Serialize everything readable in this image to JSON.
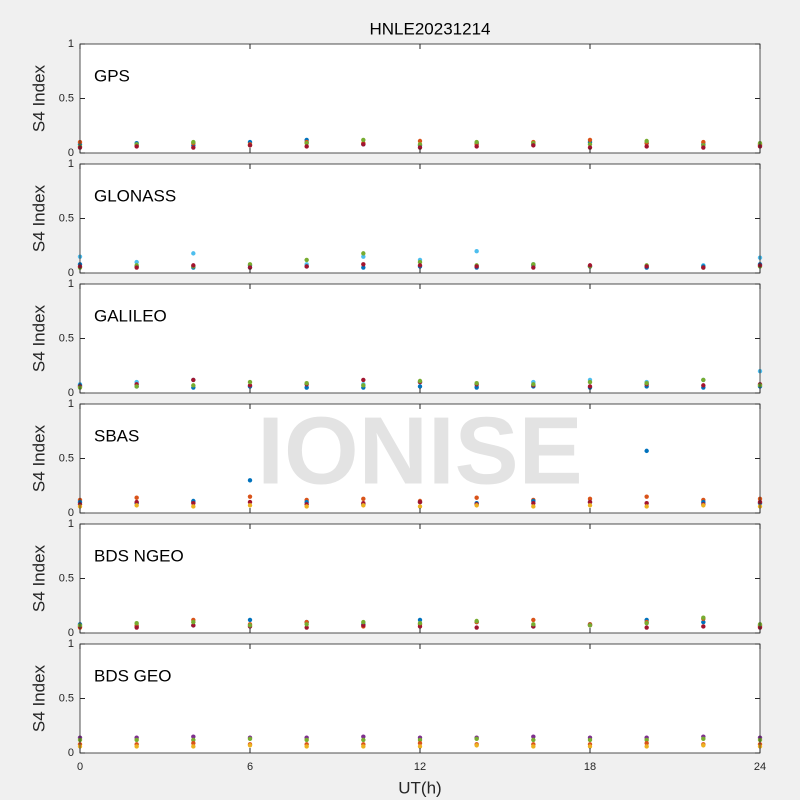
{
  "watermark": "IONISE",
  "chart_data": [
    {
      "type": "scatter",
      "title": "HNLE20231214",
      "label": "GPS",
      "ylabel": "S4 Index",
      "x": [
        0,
        2,
        4,
        6,
        8,
        10,
        12,
        14,
        16,
        18,
        20,
        22,
        24
      ],
      "xlim": [
        0,
        24
      ],
      "xticks": [
        0,
        6,
        12,
        18,
        24
      ],
      "ylim": [
        0,
        1
      ],
      "yticks": [
        0,
        0.5,
        1
      ],
      "series": [
        {
          "color": "#0072BD",
          "values": [
            0.08,
            0.09,
            0.07,
            0.1,
            0.12,
            0.08,
            0.07,
            0.09,
            0.08,
            0.1,
            0.09,
            0.08,
            0.07
          ]
        },
        {
          "color": "#D95319",
          "values": [
            0.1,
            0.07,
            0.09,
            0.08,
            0.1,
            0.09,
            0.11,
            0.08,
            0.1,
            0.12,
            0.09,
            0.1,
            0.08
          ]
        },
        {
          "color": "#77AC30",
          "values": [
            0.06,
            0.08,
            0.1,
            0.07,
            0.09,
            0.12,
            0.08,
            0.1,
            0.09,
            0.08,
            0.11,
            0.07,
            0.09
          ]
        },
        {
          "color": "#A2142F",
          "values": [
            0.05,
            0.06,
            0.05,
            0.07,
            0.06,
            0.08,
            0.05,
            0.06,
            0.07,
            0.05,
            0.06,
            0.05,
            0.06
          ]
        }
      ]
    },
    {
      "type": "scatter",
      "label": "GLONASS",
      "ylabel": "S4 Index",
      "x": [
        0,
        2,
        4,
        6,
        8,
        10,
        12,
        14,
        16,
        18,
        20,
        22,
        24
      ],
      "xlim": [
        0,
        24
      ],
      "xticks": [
        0,
        6,
        12,
        18,
        24
      ],
      "ylim": [
        0,
        1
      ],
      "yticks": [
        0,
        0.5,
        1
      ],
      "series": [
        {
          "color": "#4DBEEE",
          "values": [
            0.15,
            0.1,
            0.18,
            0.05,
            0.08,
            0.15,
            0.12,
            0.2,
            0.08,
            0.06,
            0.05,
            0.07,
            0.14
          ]
        },
        {
          "color": "#0072BD",
          "values": [
            0.08,
            0.06,
            0.05,
            0.07,
            0.06,
            0.05,
            0.06,
            0.05,
            0.07,
            0.06,
            0.05,
            0.06,
            0.08
          ]
        },
        {
          "color": "#77AC30",
          "values": [
            0.05,
            0.07,
            0.06,
            0.08,
            0.12,
            0.18,
            0.1,
            0.07,
            0.08,
            0.06,
            0.07,
            0.05,
            0.06
          ]
        },
        {
          "color": "#A2142F",
          "values": [
            0.06,
            0.05,
            0.07,
            0.05,
            0.06,
            0.08,
            0.07,
            0.06,
            0.05,
            0.07,
            0.06,
            0.05,
            0.07
          ]
        }
      ]
    },
    {
      "type": "scatter",
      "label": "GALILEO",
      "ylabel": "S4 Index",
      "x": [
        0,
        2,
        4,
        6,
        8,
        10,
        12,
        14,
        16,
        18,
        20,
        22,
        24
      ],
      "xlim": [
        0,
        24
      ],
      "xticks": [
        0,
        6,
        12,
        18,
        24
      ],
      "ylim": [
        0,
        1
      ],
      "yticks": [
        0,
        0.5,
        1
      ],
      "series": [
        {
          "color": "#4DBEEE",
          "values": [
            0.08,
            0.1,
            0.12,
            0.06,
            0.05,
            0.08,
            0.1,
            0.06,
            0.1,
            0.12,
            0.1,
            0.12,
            0.2
          ]
        },
        {
          "color": "#0072BD",
          "values": [
            0.07,
            0.06,
            0.05,
            0.06,
            0.05,
            0.05,
            0.06,
            0.05,
            0.06,
            0.05,
            0.06,
            0.05,
            0.06
          ]
        },
        {
          "color": "#A2142F",
          "values": [
            0.06,
            0.08,
            0.12,
            0.07,
            0.08,
            0.12,
            0.1,
            0.08,
            0.07,
            0.06,
            0.08,
            0.07,
            0.08
          ]
        },
        {
          "color": "#77AC30",
          "values": [
            0.05,
            0.06,
            0.07,
            0.1,
            0.09,
            0.07,
            0.11,
            0.09,
            0.08,
            0.1,
            0.09,
            0.12,
            0.07
          ]
        }
      ]
    },
    {
      "type": "scatter",
      "label": "SBAS",
      "ylabel": "S4 Index",
      "x": [
        0,
        2,
        4,
        6,
        8,
        10,
        12,
        14,
        16,
        18,
        20,
        22,
        24
      ],
      "xlim": [
        0,
        24
      ],
      "xticks": [
        0,
        6,
        12,
        18,
        24
      ],
      "ylim": [
        0,
        1
      ],
      "yticks": [
        0,
        0.5,
        1
      ],
      "series": [
        {
          "color": "#D95319",
          "values": [
            0.12,
            0.14,
            0.1,
            0.15,
            0.12,
            0.13,
            0.11,
            0.14,
            0.12,
            0.13,
            0.15,
            0.12,
            0.13
          ]
        },
        {
          "color": "#0072BD",
          "values": [
            0.1,
            0.09,
            0.11,
            0.3,
            0.1,
            0.08,
            0.1,
            0.09,
            0.11,
            0.1,
            0.57,
            0.1,
            0.09
          ]
        },
        {
          "color": "#A2142F",
          "values": [
            0.08,
            0.1,
            0.09,
            0.1,
            0.08,
            0.09,
            0.1,
            0.08,
            0.09,
            0.1,
            0.09,
            0.08,
            0.1
          ]
        },
        {
          "color": "#EDB120",
          "values": [
            0.06,
            0.07,
            0.06,
            0.07,
            0.06,
            0.07,
            0.06,
            0.07,
            0.06,
            0.07,
            0.06,
            0.07,
            0.06
          ]
        }
      ]
    },
    {
      "type": "scatter",
      "label": "BDS NGEO",
      "ylabel": "S4 Index",
      "x": [
        0,
        2,
        4,
        6,
        8,
        10,
        12,
        14,
        16,
        18,
        20,
        22,
        24
      ],
      "xlim": [
        0,
        24
      ],
      "xticks": [
        0,
        6,
        12,
        18,
        24
      ],
      "ylim": [
        0,
        1
      ],
      "yticks": [
        0,
        0.5,
        1
      ],
      "series": [
        {
          "color": "#0072BD",
          "values": [
            0.08,
            0.06,
            0.07,
            0.12,
            0.1,
            0.08,
            0.12,
            0.1,
            0.06,
            0.08,
            0.12,
            0.1,
            0.07
          ]
        },
        {
          "color": "#D95319",
          "values": [
            0.05,
            0.07,
            0.12,
            0.08,
            0.1,
            0.06,
            0.08,
            0.1,
            0.12,
            0.08,
            0.1,
            0.13,
            0.06
          ]
        },
        {
          "color": "#A2142F",
          "values": [
            0.06,
            0.05,
            0.07,
            0.06,
            0.05,
            0.07,
            0.06,
            0.05,
            0.06,
            0.07,
            0.05,
            0.06,
            0.05
          ]
        },
        {
          "color": "#77AC30",
          "values": [
            0.07,
            0.09,
            0.1,
            0.07,
            0.08,
            0.1,
            0.09,
            0.11,
            0.08,
            0.07,
            0.09,
            0.14,
            0.08
          ]
        }
      ]
    },
    {
      "type": "scatter",
      "label": "BDS GEO",
      "ylabel": "S4 Index",
      "xlabel": "UT(h)",
      "x": [
        0,
        2,
        4,
        6,
        8,
        10,
        12,
        14,
        16,
        18,
        20,
        22,
        24
      ],
      "xlim": [
        0,
        24
      ],
      "xticks": [
        0,
        6,
        12,
        18,
        24
      ],
      "ylim": [
        0,
        1
      ],
      "yticks": [
        0,
        0.5,
        1
      ],
      "series": [
        {
          "color": "#7E2F8E",
          "values": [
            0.14,
            0.14,
            0.15,
            0.14,
            0.14,
            0.15,
            0.14,
            0.14,
            0.15,
            0.14,
            0.14,
            0.15,
            0.14
          ]
        },
        {
          "color": "#77AC30",
          "values": [
            0.12,
            0.12,
            0.12,
            0.13,
            0.12,
            0.12,
            0.12,
            0.13,
            0.12,
            0.12,
            0.12,
            0.13,
            0.12
          ]
        },
        {
          "color": "#D95319",
          "values": [
            0.08,
            0.08,
            0.09,
            0.08,
            0.08,
            0.08,
            0.09,
            0.08,
            0.08,
            0.08,
            0.09,
            0.08,
            0.08
          ]
        },
        {
          "color": "#EDB120",
          "values": [
            0.06,
            0.06,
            0.06,
            0.07,
            0.06,
            0.06,
            0.06,
            0.07,
            0.06,
            0.06,
            0.06,
            0.07,
            0.06
          ]
        }
      ]
    }
  ]
}
